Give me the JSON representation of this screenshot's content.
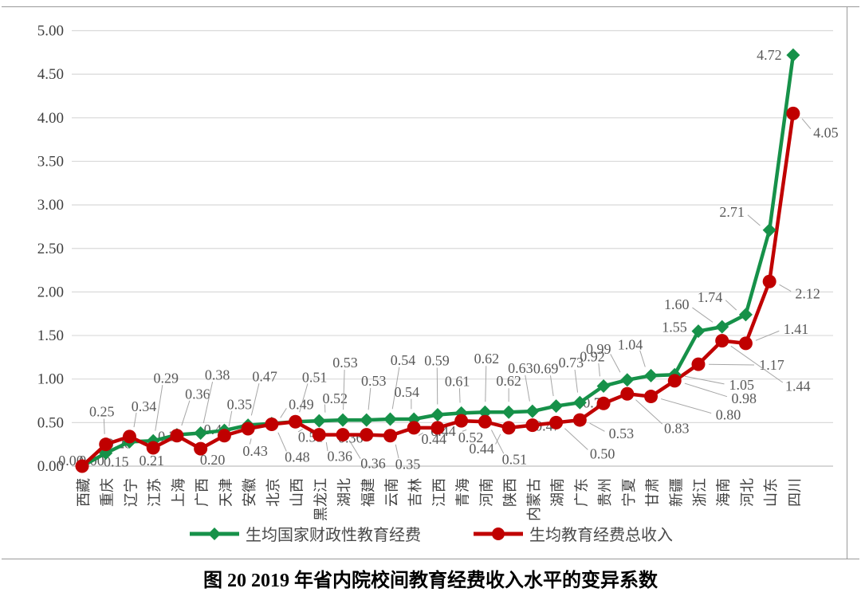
{
  "figure_title": "图 20  2019 年省内院校间教育经费收入水平的变异系数",
  "y_axis": {
    "min": 0,
    "max": 5,
    "step": 0.5
  },
  "chart_data": {
    "type": "line",
    "title": "图 20 2019 年省内院校间教育经费收入水平的变异系数",
    "categories": [
      "西藏",
      "重庆",
      "辽宁",
      "江苏",
      "上海",
      "广西",
      "天津",
      "安徽",
      "北京",
      "山西",
      "黑龙江",
      "湖北",
      "福建",
      "云南",
      "吉林",
      "江西",
      "青海",
      "河南",
      "陕西",
      "内蒙古",
      "湖南",
      "广东",
      "贵州",
      "宁夏",
      "甘肃",
      "新疆",
      "浙江",
      "海南",
      "河北",
      "山东",
      "四川"
    ],
    "series": [
      {
        "name": "生均国家财政性教育经费",
        "marker": "diamond",
        "color": "#169149",
        "values": [
          0.0,
          0.15,
          0.28,
          0.29,
          0.36,
          0.38,
          0.41,
          0.47,
          0.49,
          0.51,
          0.52,
          0.53,
          0.53,
          0.54,
          0.54,
          0.59,
          0.61,
          0.62,
          0.62,
          0.63,
          0.69,
          0.73,
          0.92,
          0.99,
          1.04,
          1.05,
          1.55,
          1.6,
          1.74,
          2.71,
          4.72
        ]
      },
      {
        "name": "生均教育经费总收入",
        "marker": "circle",
        "color": "#C00000",
        "values": [
          0.0,
          0.25,
          0.34,
          0.21,
          0.35,
          0.2,
          0.35,
          0.43,
          0.48,
          0.51,
          0.36,
          0.36,
          0.36,
          0.35,
          0.44,
          0.44,
          0.52,
          0.51,
          0.44,
          0.47,
          0.5,
          0.53,
          0.72,
          0.83,
          0.8,
          0.98,
          1.17,
          1.44,
          1.41,
          2.12,
          4.05
        ]
      }
    ],
    "ylim": [
      0,
      5
    ],
    "grid": true,
    "legend_position": "bottom",
    "data_labels": true
  },
  "colors": {
    "green": "#169149",
    "red": "#C00000",
    "gridline": "#d9d9d9",
    "baseline": "#bfbfbf",
    "leader": "#a6a6a6",
    "data_label_text": "#595959",
    "axis_text": "#3f3f3f"
  }
}
